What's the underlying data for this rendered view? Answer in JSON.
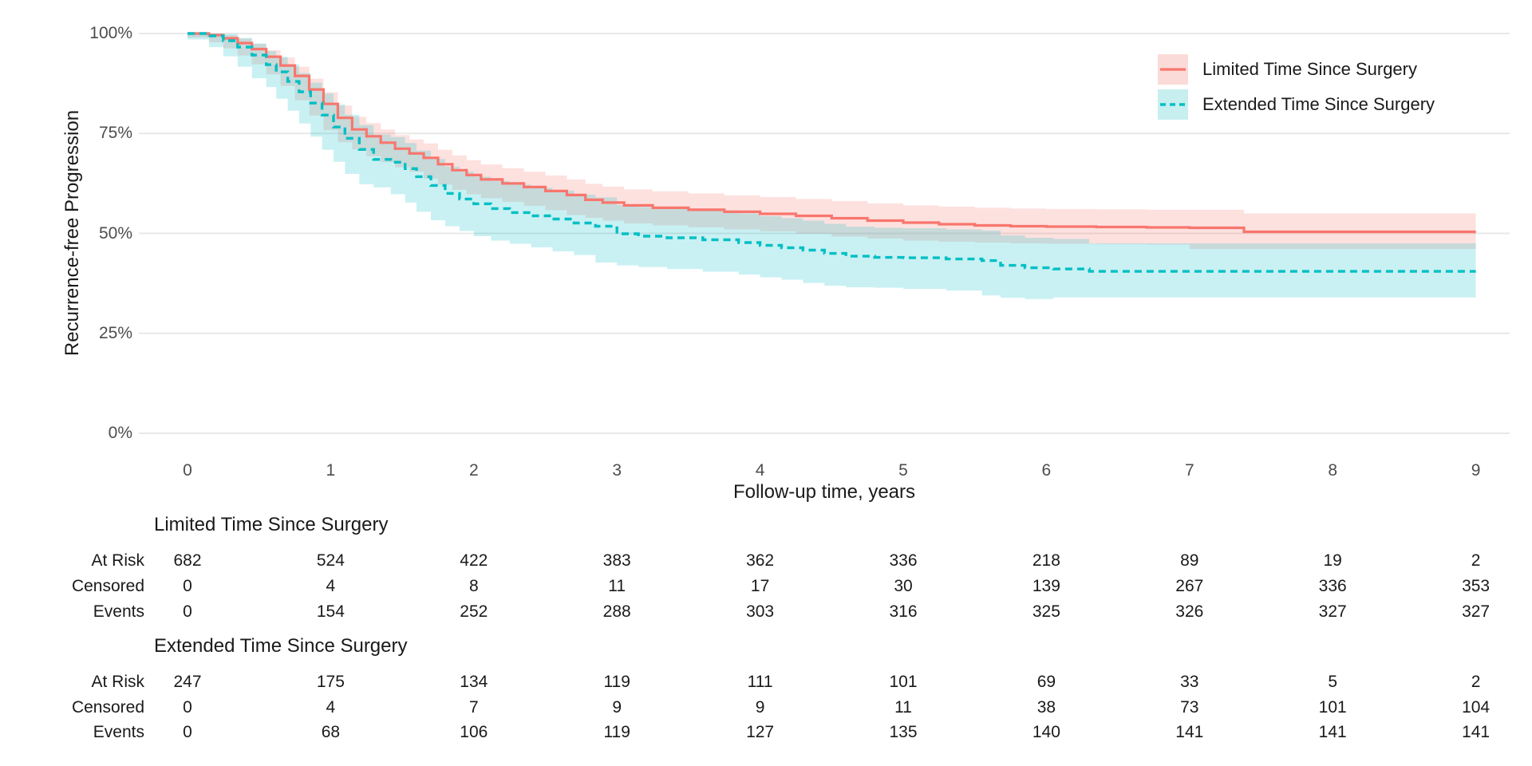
{
  "chart": {
    "y_axis": {
      "title": "Recurrence-free Progression",
      "ticks": [
        "0%",
        "25%",
        "50%",
        "75%",
        "100%"
      ],
      "tick_values": [
        0,
        25,
        50,
        75,
        100
      ]
    },
    "x_axis": {
      "title": "Follow-up time, years",
      "ticks": [
        "0",
        "1",
        "2",
        "3",
        "4",
        "5",
        "6",
        "7",
        "8",
        "9"
      ],
      "tick_values": [
        0,
        1,
        2,
        3,
        4,
        5,
        6,
        7,
        8,
        9
      ]
    },
    "legend": [
      {
        "label": "Limited Time Since Surgery",
        "color": "#F8766D",
        "fill": "#FBDBD7",
        "style": "solid"
      },
      {
        "label": "Extended Time Since Surgery",
        "color": "#00BFC4",
        "fill": "#C7EFF0",
        "style": "dashed"
      }
    ],
    "colors": {
      "grid": "#E8E8E8",
      "tick_text": "#4d4d4d",
      "limited_line": "#F8766D",
      "extended_line": "#00BFC4",
      "limited_band": "rgba(248,118,109,0.22)",
      "extended_band": "rgba(0,191,196,0.21)"
    }
  },
  "chart_data": {
    "type": "line",
    "subtype": "kaplan-meier-step",
    "title": "",
    "xlabel": "Follow-up time, years",
    "ylabel": "Recurrence-free Progression",
    "xlim": [
      0,
      9
    ],
    "ylim": [
      0,
      100
    ],
    "x_ticks": [
      0,
      1,
      2,
      3,
      4,
      5,
      6,
      7,
      8,
      9
    ],
    "y_ticks": [
      0,
      25,
      50,
      75,
      100
    ],
    "grid": "horizontal-major-only",
    "legend_position": "top-right",
    "series": [
      {
        "name": "Limited Time Since Surgery",
        "color": "#F8766D",
        "line_style": "solid",
        "step_points": [
          [
            0,
            100
          ],
          [
            0.15,
            99.6
          ],
          [
            0.25,
            98.8
          ],
          [
            0.35,
            97.6
          ],
          [
            0.45,
            96.1
          ],
          [
            0.55,
            94.2
          ],
          [
            0.65,
            92
          ],
          [
            0.75,
            89.4
          ],
          [
            0.85,
            86
          ],
          [
            0.95,
            82.4
          ],
          [
            1.05,
            78.9
          ],
          [
            1.15,
            76
          ],
          [
            1.25,
            74.3
          ],
          [
            1.35,
            72.7
          ],
          [
            1.45,
            71.2
          ],
          [
            1.55,
            70
          ],
          [
            1.65,
            68.9
          ],
          [
            1.75,
            67.3
          ],
          [
            1.85,
            65.8
          ],
          [
            1.95,
            64.6
          ],
          [
            2.05,
            63.5
          ],
          [
            2.2,
            62.5
          ],
          [
            2.35,
            61.6
          ],
          [
            2.5,
            60.6
          ],
          [
            2.65,
            59.6
          ],
          [
            2.78,
            58.4
          ],
          [
            2.9,
            57.7
          ],
          [
            3.05,
            57
          ],
          [
            3.25,
            56.4
          ],
          [
            3.5,
            55.9
          ],
          [
            3.75,
            55.4
          ],
          [
            4.0,
            54.9
          ],
          [
            4.25,
            54.4
          ],
          [
            4.5,
            53.8
          ],
          [
            4.75,
            53.2
          ],
          [
            5.0,
            52.7
          ],
          [
            5.25,
            52.3
          ],
          [
            5.5,
            52
          ],
          [
            5.75,
            51.8
          ],
          [
            6.0,
            51.7
          ],
          [
            6.35,
            51.6
          ],
          [
            6.7,
            51.5
          ],
          [
            7.0,
            51.4
          ],
          [
            7.38,
            50.4
          ],
          [
            9,
            50.4
          ]
        ],
        "ci": [
          [
            0,
            99.9,
            100
          ],
          [
            0.15,
            99,
            100
          ],
          [
            0.25,
            97.8,
            99.6
          ],
          [
            0.35,
            96.3,
            98.7
          ],
          [
            0.45,
            94.5,
            97.4
          ],
          [
            0.55,
            92.3,
            95.8
          ],
          [
            0.65,
            89.8,
            94
          ],
          [
            0.75,
            86.9,
            91.7
          ],
          [
            0.85,
            83.3,
            88.7
          ],
          [
            0.95,
            79.5,
            85.3
          ],
          [
            1.05,
            75.8,
            82
          ],
          [
            1.15,
            72.8,
            79.2
          ],
          [
            1.25,
            71,
            77.6
          ],
          [
            1.35,
            69.3,
            76
          ],
          [
            1.45,
            67.8,
            74.6
          ],
          [
            1.55,
            66.5,
            73.5
          ],
          [
            1.65,
            65.4,
            72.5
          ],
          [
            1.75,
            63.7,
            70.9
          ],
          [
            1.85,
            62.2,
            69.5
          ],
          [
            1.95,
            60.9,
            68.3
          ],
          [
            2.05,
            59.8,
            67.2
          ],
          [
            2.2,
            58.8,
            66.3
          ],
          [
            2.35,
            57.9,
            65.4
          ],
          [
            2.5,
            56.9,
            64.5
          ],
          [
            2.65,
            55.8,
            63.5
          ],
          [
            2.78,
            54.6,
            62.4
          ],
          [
            2.9,
            53.9,
            61.7
          ],
          [
            3.05,
            53.2,
            61
          ],
          [
            3.25,
            52.5,
            60.5
          ],
          [
            3.5,
            52,
            60
          ],
          [
            3.75,
            51.5,
            59.5
          ],
          [
            4.0,
            51,
            59.1
          ],
          [
            4.25,
            50.5,
            58.6
          ],
          [
            4.5,
            49.9,
            58.1
          ],
          [
            4.75,
            49.2,
            57.5
          ],
          [
            5.0,
            48.7,
            57
          ],
          [
            5.25,
            48.2,
            56.7
          ],
          [
            5.5,
            47.9,
            56.4
          ],
          [
            5.75,
            47.7,
            56.2
          ],
          [
            6.0,
            47.5,
            56.1
          ],
          [
            6.35,
            47.4,
            56
          ],
          [
            6.7,
            47.3,
            55.9
          ],
          [
            7.0,
            47.2,
            55.9
          ],
          [
            7.38,
            46.1,
            55
          ],
          [
            9,
            46.1,
            55
          ]
        ]
      },
      {
        "name": "Extended Time Since Surgery",
        "color": "#00BFC4",
        "line_style": "dashed",
        "step_points": [
          [
            0,
            100
          ],
          [
            0.15,
            99.4
          ],
          [
            0.25,
            98.2
          ],
          [
            0.35,
            96.6
          ],
          [
            0.45,
            94.6
          ],
          [
            0.55,
            92.2
          ],
          [
            0.62,
            90.4
          ],
          [
            0.7,
            88
          ],
          [
            0.78,
            85.4
          ],
          [
            0.86,
            82.6
          ],
          [
            0.94,
            79.6
          ],
          [
            1.02,
            76.6
          ],
          [
            1.1,
            73.8
          ],
          [
            1.2,
            71
          ],
          [
            1.3,
            68.5
          ],
          [
            1.42,
            67.8
          ],
          [
            1.52,
            66.2
          ],
          [
            1.6,
            64.2
          ],
          [
            1.7,
            62
          ],
          [
            1.8,
            60
          ],
          [
            1.9,
            58.6
          ],
          [
            2.0,
            57.4
          ],
          [
            2.12,
            56.2
          ],
          [
            2.25,
            55.2
          ],
          [
            2.4,
            54.4
          ],
          [
            2.55,
            53.6
          ],
          [
            2.7,
            52.6
          ],
          [
            2.85,
            51.8
          ],
          [
            3.0,
            49.9
          ],
          [
            3.15,
            49.3
          ],
          [
            3.35,
            48.9
          ],
          [
            3.6,
            48.4
          ],
          [
            3.85,
            47.7
          ],
          [
            4.0,
            47
          ],
          [
            4.15,
            46.4
          ],
          [
            4.3,
            45.8
          ],
          [
            4.45,
            45
          ],
          [
            4.6,
            44.3
          ],
          [
            4.8,
            44
          ],
          [
            5.0,
            43.9
          ],
          [
            5.3,
            43.6
          ],
          [
            5.55,
            43.2
          ],
          [
            5.68,
            42
          ],
          [
            5.85,
            41.4
          ],
          [
            6.05,
            41.1
          ],
          [
            6.3,
            40.5
          ],
          [
            9,
            40.5
          ]
        ],
        "ci": [
          [
            0,
            99.8,
            100
          ],
          [
            0.15,
            98.5,
            100
          ],
          [
            0.25,
            96.6,
            99.9
          ],
          [
            0.35,
            94.3,
            98.9
          ],
          [
            0.45,
            91.7,
            97.5
          ],
          [
            0.55,
            88.8,
            95.6
          ],
          [
            0.62,
            86.6,
            94.2
          ],
          [
            0.7,
            83.7,
            92.3
          ],
          [
            0.78,
            80.7,
            90.1
          ],
          [
            0.86,
            77.5,
            87.7
          ],
          [
            0.94,
            74.2,
            85
          ],
          [
            1.02,
            70.9,
            82.3
          ],
          [
            1.1,
            67.9,
            79.7
          ],
          [
            1.2,
            64.9,
            77.1
          ],
          [
            1.3,
            62.3,
            74.7
          ],
          [
            1.42,
            61.5,
            74.1
          ],
          [
            1.52,
            59.8,
            72.6
          ],
          [
            1.6,
            57.7,
            70.7
          ],
          [
            1.7,
            55.4,
            68.6
          ],
          [
            1.8,
            53.3,
            66.7
          ],
          [
            1.9,
            51.8,
            65.4
          ],
          [
            2.0,
            50.6,
            64.2
          ],
          [
            2.12,
            49.3,
            63.1
          ],
          [
            2.25,
            48.2,
            62.2
          ],
          [
            2.4,
            47.4,
            61.4
          ],
          [
            2.55,
            46.5,
            60.7
          ],
          [
            2.7,
            45.5,
            59.7
          ],
          [
            2.85,
            44.6,
            59
          ],
          [
            3.0,
            42.7,
            57.1
          ],
          [
            3.15,
            42,
            56.6
          ],
          [
            3.35,
            41.6,
            56.2
          ],
          [
            3.6,
            41.1,
            55.7
          ],
          [
            3.85,
            40.4,
            55
          ],
          [
            4.0,
            39.7,
            54.3
          ],
          [
            4.15,
            39,
            53.8
          ],
          [
            4.3,
            38.4,
            53.2
          ],
          [
            4.45,
            37.6,
            52.4
          ],
          [
            4.6,
            36.9,
            51.7
          ],
          [
            4.8,
            36.5,
            51.4
          ],
          [
            5.0,
            36.4,
            51.3
          ],
          [
            5.3,
            36.1,
            51
          ],
          [
            5.55,
            35.7,
            50.7
          ],
          [
            5.68,
            34.5,
            49.5
          ],
          [
            5.85,
            33.9,
            48.9
          ],
          [
            6.05,
            33.6,
            48.6
          ],
          [
            6.3,
            34,
            47.5
          ],
          [
            9,
            34,
            47.5
          ]
        ]
      }
    ]
  },
  "risk_tables": [
    {
      "title": "Limited Time Since Surgery",
      "rows": [
        {
          "label": "At Risk",
          "values": [
            "682",
            "524",
            "422",
            "383",
            "362",
            "336",
            "218",
            "89",
            "19",
            "2"
          ]
        },
        {
          "label": "Censored",
          "values": [
            "0",
            "4",
            "8",
            "11",
            "17",
            "30",
            "139",
            "267",
            "336",
            "353"
          ]
        },
        {
          "label": "Events",
          "values": [
            "0",
            "154",
            "252",
            "288",
            "303",
            "316",
            "325",
            "326",
            "327",
            "327"
          ]
        }
      ]
    },
    {
      "title": "Extended Time Since Surgery",
      "rows": [
        {
          "label": "At Risk",
          "values": [
            "247",
            "175",
            "134",
            "119",
            "111",
            "101",
            "69",
            "33",
            "5",
            "2"
          ]
        },
        {
          "label": "Censored",
          "values": [
            "0",
            "4",
            "7",
            "9",
            "9",
            "11",
            "38",
            "73",
            "101",
            "104"
          ]
        },
        {
          "label": "Events",
          "values": [
            "0",
            "68",
            "106",
            "119",
            "127",
            "135",
            "140",
            "141",
            "141",
            "141"
          ]
        }
      ]
    }
  ]
}
